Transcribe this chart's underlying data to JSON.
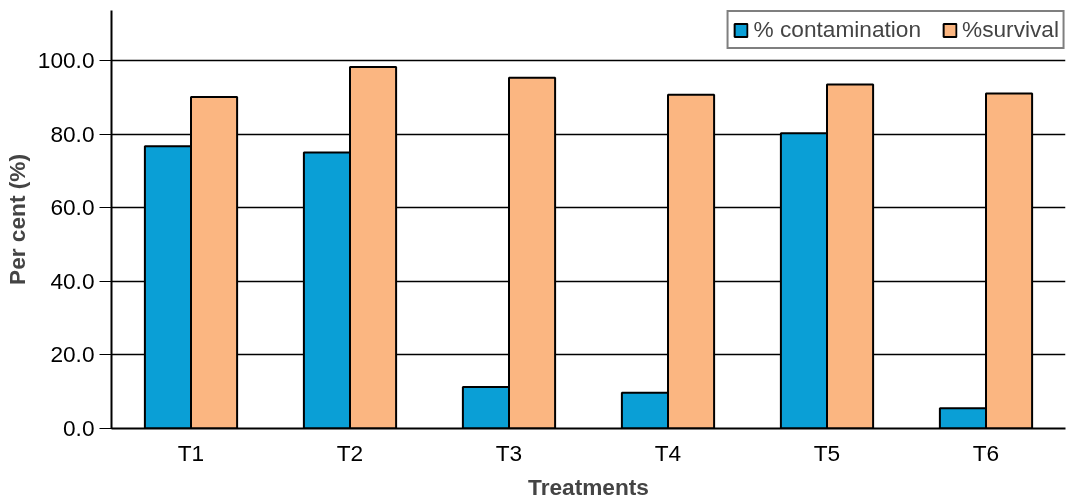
{
  "chart_data": {
    "type": "bar",
    "xlabel": "Treatments",
    "ylabel": "Per cent (%)",
    "categories": [
      "T1",
      "T2",
      "T3",
      "T4",
      "T5",
      "T6"
    ],
    "series": [
      {
        "name": "% contamination",
        "color": "#0a9fd6",
        "values": [
          76.8,
          75.1,
          11.3,
          9.7,
          80.3,
          5.5
        ]
      },
      {
        "name": "%survival",
        "color": "#fbb681",
        "values": [
          90.2,
          98.3,
          95.4,
          90.8,
          93.6,
          91.1
        ]
      }
    ],
    "ylim": [
      0,
      113.7
    ],
    "yticks": [
      {
        "value": 0,
        "label": "0.0"
      },
      {
        "value": 20,
        "label": "20.0"
      },
      {
        "value": 40,
        "label": "40.0"
      },
      {
        "value": 60,
        "label": "60.0"
      },
      {
        "value": 80,
        "label": "80.0"
      },
      {
        "value": 100,
        "label": "100.0"
      }
    ],
    "grid": "y",
    "legend": "top right"
  }
}
